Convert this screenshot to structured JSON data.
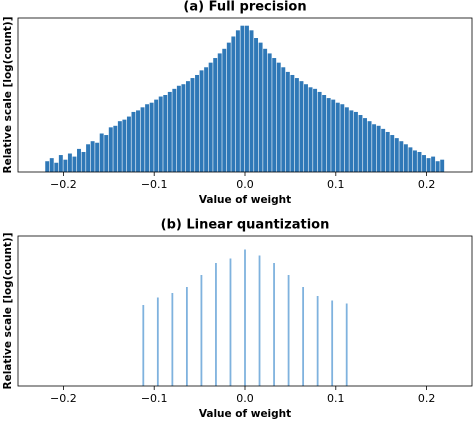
{
  "chart_data": [
    {
      "type": "histogram",
      "title": "(a) Full precision",
      "xlabel": "Value of weight",
      "ylabel": "Relative scale [log(count)]",
      "color": "#2f78b7",
      "bins": [
        -0.22,
        -0.215,
        -0.21,
        -0.205,
        -0.2,
        -0.195,
        -0.19,
        -0.185,
        -0.18,
        -0.175,
        -0.17,
        -0.165,
        -0.16,
        -0.155,
        -0.15,
        -0.145,
        -0.14,
        -0.135,
        -0.13,
        -0.125,
        -0.12,
        -0.115,
        -0.11,
        -0.105,
        -0.1,
        -0.095,
        -0.09,
        -0.085,
        -0.08,
        -0.075,
        -0.07,
        -0.065,
        -0.06,
        -0.055,
        -0.05,
        -0.045,
        -0.04,
        -0.035,
        -0.03,
        -0.025,
        -0.02,
        -0.015,
        -0.01,
        -0.005,
        0,
        0.005,
        0.01,
        0.015,
        0.02,
        0.025,
        0.03,
        0.035,
        0.04,
        0.045,
        0.05,
        0.055,
        0.06,
        0.065,
        0.07,
        0.075,
        0.08,
        0.085,
        0.09,
        0.095,
        0.1,
        0.105,
        0.11,
        0.115,
        0.12,
        0.125,
        0.13,
        0.135,
        0.14,
        0.145,
        0.15,
        0.155,
        0.16,
        0.165,
        0.17,
        0.175,
        0.18,
        0.185,
        0.19,
        0.195,
        0.2,
        0.205,
        0.21,
        0.215,
        0.22
      ],
      "values": [
        0.07,
        0.09,
        0.06,
        0.11,
        0.08,
        0.12,
        0.1,
        0.15,
        0.13,
        0.18,
        0.2,
        0.19,
        0.25,
        0.24,
        0.29,
        0.3,
        0.33,
        0.34,
        0.36,
        0.39,
        0.4,
        0.42,
        0.44,
        0.45,
        0.47,
        0.49,
        0.5,
        0.52,
        0.54,
        0.56,
        0.57,
        0.59,
        0.61,
        0.63,
        0.66,
        0.68,
        0.71,
        0.74,
        0.77,
        0.8,
        0.84,
        0.88,
        0.92,
        0.95,
        0.95,
        0.92,
        0.87,
        0.84,
        0.8,
        0.77,
        0.74,
        0.71,
        0.68,
        0.65,
        0.63,
        0.61,
        0.59,
        0.57,
        0.55,
        0.54,
        0.52,
        0.5,
        0.48,
        0.47,
        0.45,
        0.44,
        0.42,
        0.4,
        0.39,
        0.37,
        0.35,
        0.33,
        0.31,
        0.3,
        0.28,
        0.26,
        0.24,
        0.22,
        0.2,
        0.18,
        0.16,
        0.14,
        0.13,
        0.11,
        0.09,
        0.1,
        0.07,
        0.08
      ],
      "xlim": [
        -0.25,
        0.25
      ],
      "ylim": [
        0,
        1
      ],
      "xticks": [
        {
          "value": -0.2,
          "label": "−0.2"
        },
        {
          "value": -0.1,
          "label": "−0.1"
        },
        {
          "value": 0,
          "label": "0.0"
        },
        0.1,
        0.2
      ]
    },
    {
      "type": "bar",
      "title": "(b) Linear quantization",
      "xlabel": "Value of weight",
      "ylabel": "Relative scale [log(count)]",
      "color": "#7fb2de",
      "x": [
        -0.112,
        -0.096,
        -0.08,
        -0.064,
        -0.048,
        -0.032,
        -0.016,
        0,
        0.016,
        0.032,
        0.048,
        0.064,
        0.08,
        0.096,
        0.112
      ],
      "values": [
        0.54,
        0.59,
        0.62,
        0.66,
        0.74,
        0.82,
        0.85,
        0.91,
        0.87,
        0.82,
        0.74,
        0.66,
        0.6,
        0.57,
        0.55
      ],
      "xlim": [
        -0.25,
        0.25
      ],
      "ylim": [
        0,
        1
      ],
      "xticks": [
        {
          "value": -0.2,
          "label": "−0.2"
        },
        {
          "value": -0.1,
          "label": "−0.1"
        },
        {
          "value": 0,
          "label": "0.0"
        },
        0.1,
        0.2
      ]
    }
  ]
}
